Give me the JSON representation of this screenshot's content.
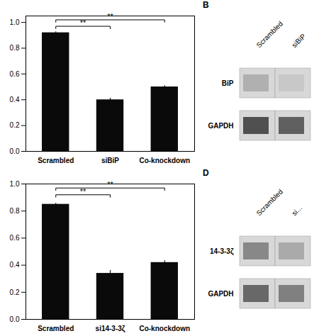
{
  "chart_data": [
    {
      "type": "bar",
      "categories": [
        "Scrambled",
        "siBiP",
        "Co-knockdown"
      ],
      "values": [
        0.92,
        0.4,
        0.5
      ],
      "errors": [
        0.008,
        0.012,
        0.01
      ],
      "color": "#0a0a0a",
      "ylim": [
        0,
        1.05
      ],
      "yticks": [
        {
          "value": 0,
          "label": "0.0"
        },
        0.2,
        0.4,
        0.6,
        0.8,
        {
          "value": 1,
          "label": "1.0"
        }
      ],
      "annotations": [
        {
          "x1": "Scrambled",
          "x2": "siBiP",
          "y": 0.97,
          "label": "**"
        },
        {
          "x1": "Scrambled",
          "x2": "Co-knockdown",
          "y": 1.02,
          "label": "**"
        }
      ]
    },
    {
      "type": "blot",
      "title": "B",
      "categories": [
        "Scrambled",
        "siBiP"
      ],
      "series": [
        {
          "name": "BiP",
          "colors": [
            "#b0b0b0",
            "#c8c8c8"
          ]
        },
        {
          "name": "GAPDH",
          "colors": [
            "#505050",
            "#606060"
          ]
        }
      ]
    },
    {
      "type": "bar",
      "categories": [
        "Scrambled",
        "si14-3-3ζ",
        "Co-knockdown"
      ],
      "values": [
        0.85,
        0.34,
        0.42
      ],
      "errors": [
        0.008,
        0.022,
        0.014
      ],
      "color": "#0a0a0a",
      "ylim": [
        0,
        1.0
      ],
      "yticks": [
        {
          "value": 0,
          "label": "0.0"
        },
        0.2,
        0.4,
        0.6,
        0.8,
        {
          "value": 1,
          "label": "1.0"
        }
      ],
      "annotations": [
        {
          "x1": "Scrambled",
          "x2": "si14-3-3ζ",
          "y": 0.92,
          "label": "**"
        },
        {
          "x1": "Scrambled",
          "x2": "Co-knockdown",
          "y": 0.97,
          "label": "**"
        }
      ]
    },
    {
      "type": "blot",
      "title": "D",
      "categories": [
        "Scrambled",
        "si..."
      ],
      "series": [
        {
          "name": "14-3-3ζ",
          "colors": [
            "#888888",
            "#aaaaaa"
          ]
        },
        {
          "name": "GAPDH",
          "colors": [
            "#686868",
            "#808080"
          ]
        }
      ]
    }
  ]
}
